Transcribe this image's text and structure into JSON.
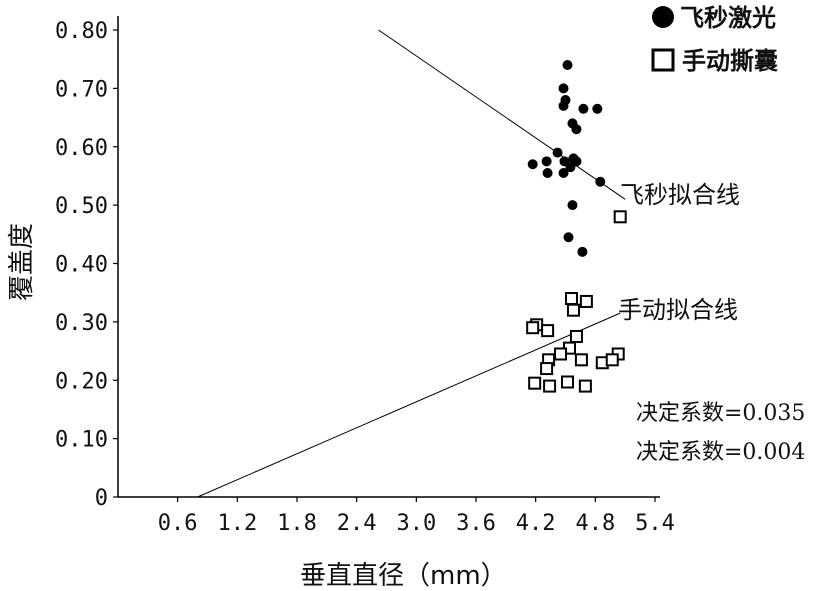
{
  "chart_data": {
    "type": "scatter",
    "xlabel": "垂直直径（mm）",
    "ylabel": "覆盖度",
    "xlim": [
      0,
      5.4
    ],
    "ylim": [
      0,
      0.8
    ],
    "x_ticks": [
      "0.6",
      "1.2",
      "1.8",
      "2.4",
      "3.0",
      "3.6",
      "4.2",
      "4.8",
      "5.4"
    ],
    "y_ticks": [
      "0",
      "0.10",
      "0.20",
      "0.30",
      "0.40",
      "0.50",
      "0.60",
      "0.70",
      "0.80"
    ],
    "legend_position": "top-right",
    "series": [
      {
        "name": "飞秒激光",
        "marker": "filled-circle",
        "color": "#000000",
        "points": [
          [
            4.52,
            0.74
          ],
          [
            4.48,
            0.7
          ],
          [
            4.5,
            0.68
          ],
          [
            4.48,
            0.67
          ],
          [
            4.68,
            0.665
          ],
          [
            4.82,
            0.665
          ],
          [
            4.57,
            0.64
          ],
          [
            4.61,
            0.63
          ],
          [
            4.42,
            0.59
          ],
          [
            4.58,
            0.58
          ],
          [
            4.31,
            0.575
          ],
          [
            4.49,
            0.575
          ],
          [
            4.61,
            0.575
          ],
          [
            4.17,
            0.57
          ],
          [
            4.55,
            0.565
          ],
          [
            4.32,
            0.555
          ],
          [
            4.48,
            0.555
          ],
          [
            4.85,
            0.54
          ],
          [
            4.57,
            0.5
          ],
          [
            4.53,
            0.445
          ],
          [
            4.67,
            0.42
          ]
        ],
        "fit": {
          "label": "飞秒拟合线",
          "x": [
            2.62,
            5.1
          ],
          "y": [
            0.8,
            0.51
          ]
        }
      },
      {
        "name": "手动撕囊",
        "marker": "open-square",
        "color": "#000000",
        "points": [
          [
            5.05,
            0.48
          ],
          [
            4.56,
            0.34
          ],
          [
            4.71,
            0.335
          ],
          [
            4.58,
            0.32
          ],
          [
            4.21,
            0.295
          ],
          [
            4.17,
            0.29
          ],
          [
            4.32,
            0.285
          ],
          [
            4.61,
            0.275
          ],
          [
            4.54,
            0.255
          ],
          [
            4.45,
            0.245
          ],
          [
            4.33,
            0.235
          ],
          [
            4.66,
            0.235
          ],
          [
            4.87,
            0.23
          ],
          [
            5.03,
            0.245
          ],
          [
            4.97,
            0.235
          ],
          [
            4.31,
            0.22
          ],
          [
            4.19,
            0.195
          ],
          [
            4.52,
            0.197
          ],
          [
            4.7,
            0.19
          ],
          [
            4.34,
            0.19
          ]
        ],
        "fit": {
          "label": "手动拟合线",
          "x": [
            0.8,
            5.05
          ],
          "y": [
            0.0,
            0.315
          ]
        }
      }
    ],
    "annotations": [
      "决定系数=0.035",
      "决定系数=0.004"
    ]
  }
}
